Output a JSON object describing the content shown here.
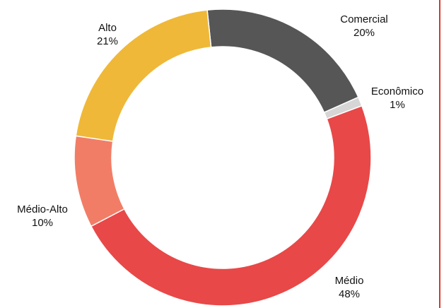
{
  "chart_data": {
    "type": "donut",
    "categories": [
      "Comercial",
      "Econômico",
      "Médio",
      "Médio-Alto",
      "Alto"
    ],
    "values": [
      20,
      1,
      48,
      10,
      21
    ],
    "value_labels": [
      "20%",
      "1%",
      "48%",
      "10%",
      "21%"
    ],
    "colors": [
      "#565656",
      "#d6d6d6",
      "#e84848",
      "#f27d66",
      "#efb838"
    ]
  }
}
